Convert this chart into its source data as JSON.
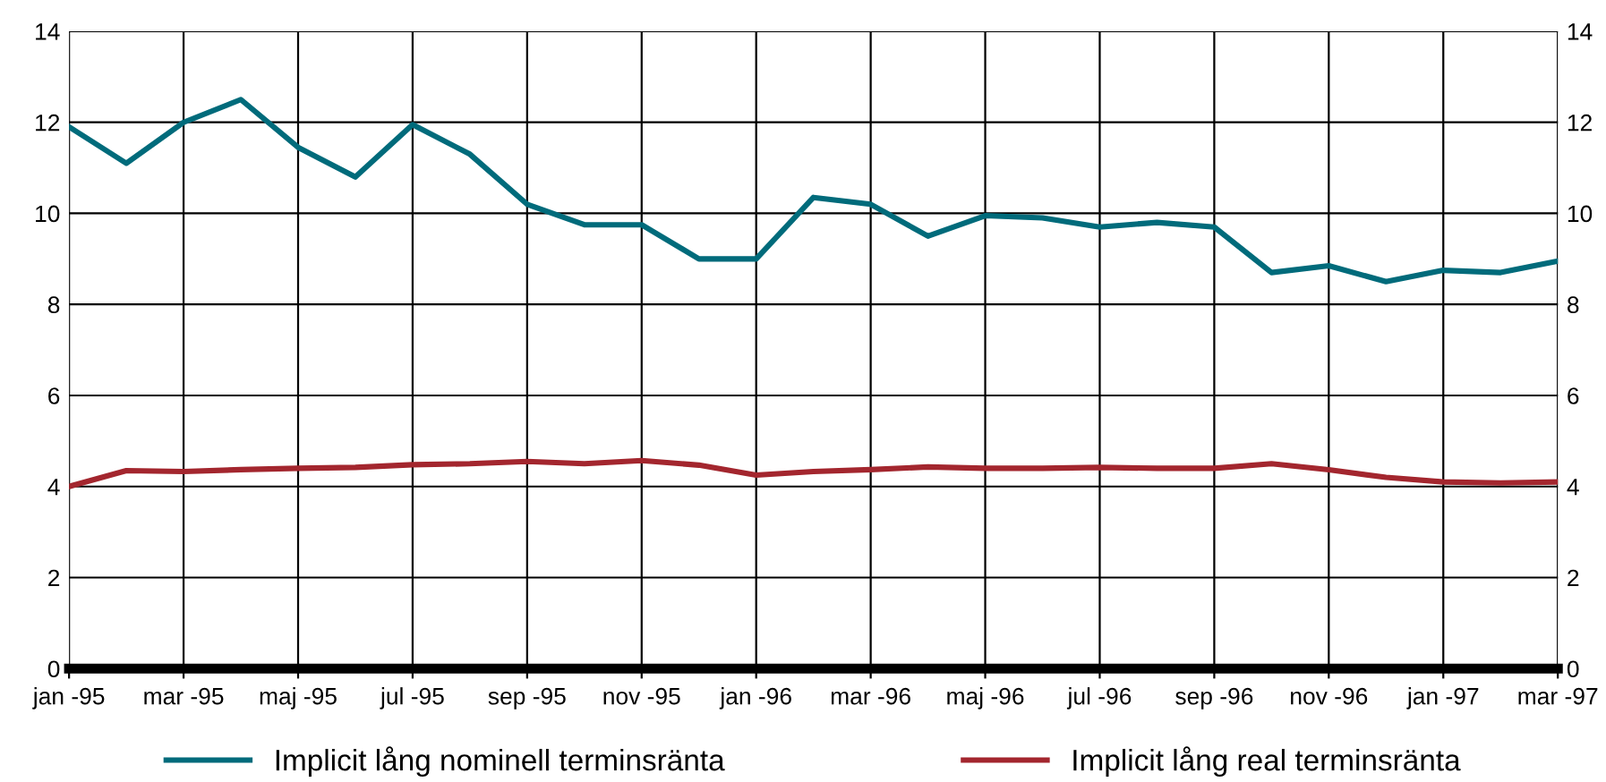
{
  "chart_data": {
    "type": "line",
    "categories": [
      "jan -95",
      null,
      "mar -95",
      null,
      "maj -95",
      null,
      "jul -95",
      null,
      "sep -95",
      null,
      "nov -95",
      null,
      "jan -96",
      null,
      "mar -96",
      null,
      "maj -96",
      null,
      "jul -96",
      null,
      "sep -96",
      null,
      "nov -96",
      null,
      "jan -97",
      null,
      "mar -97"
    ],
    "series": [
      {
        "name": "Implicit lång nominell terminsränta",
        "color": "#006b7b",
        "values": [
          11.9,
          11.1,
          12.0,
          12.5,
          11.45,
          10.8,
          11.95,
          11.3,
          10.2,
          9.75,
          9.75,
          9.0,
          9.0,
          10.35,
          10.2,
          9.5,
          9.95,
          9.9,
          9.7,
          9.8,
          9.7,
          8.7,
          8.85,
          8.5,
          8.75,
          8.7,
          8.95
        ]
      },
      {
        "name": "Implicit lång real terminsränta",
        "color": "#a3262e",
        "values": [
          4.0,
          4.35,
          4.33,
          4.37,
          4.4,
          4.42,
          4.48,
          4.5,
          4.55,
          4.5,
          4.57,
          4.47,
          4.25,
          4.33,
          4.37,
          4.43,
          4.4,
          4.4,
          4.42,
          4.4,
          4.4,
          4.5,
          4.37,
          4.2,
          4.1,
          4.08,
          4.1
        ]
      }
    ],
    "ylim": [
      0,
      14
    ],
    "yticks": [
      0,
      2,
      4,
      6,
      8,
      10,
      12,
      14
    ],
    "y2lim": [
      0,
      14
    ],
    "y2ticks": [
      0,
      2,
      4,
      6,
      8,
      10,
      12,
      14
    ],
    "grid": true,
    "legend": "bottom",
    "marker": "none",
    "line_style": "solid"
  }
}
